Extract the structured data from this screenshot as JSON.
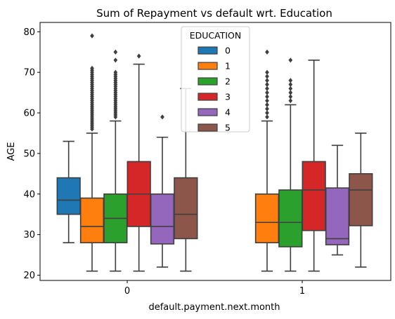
{
  "chart_data": {
    "type": "box",
    "title": "Sum of Repayment vs default wrt. Education",
    "xlabel": "default.payment.next.month",
    "ylabel": "AGE",
    "ylim": [
      18.7,
      82.3
    ],
    "yticks": [
      20,
      30,
      40,
      50,
      60,
      70,
      80
    ],
    "categories": [
      "0",
      "1"
    ],
    "grid": false,
    "legend": {
      "title": "EDUCATION",
      "placement": "upper-center"
    },
    "series": [
      {
        "name": "0",
        "color": "#1f77b4",
        "boxes": [
          {
            "category": "0",
            "q1": 35,
            "median": 38.5,
            "q3": 44,
            "whislo": 28,
            "whishi": 53,
            "outliers": []
          },
          null
        ]
      },
      {
        "name": "1",
        "color": "#ff7f0e",
        "boxes": [
          {
            "category": "0",
            "q1": 28,
            "median": 32,
            "q3": 39,
            "whislo": 21,
            "whishi": 55,
            "outliers": [
              56,
              56.5,
              57,
              57.5,
              58,
              58.5,
              59,
              59.5,
              60,
              60.5,
              61,
              61.5,
              62,
              62.5,
              63,
              63.5,
              64,
              64.5,
              65,
              65.5,
              66,
              66.5,
              67,
              67.5,
              68,
              68.5,
              69,
              69.5,
              70,
              70.5,
              71,
              79
            ]
          },
          {
            "category": "1",
            "q1": 28,
            "median": 33,
            "q3": 40,
            "whislo": 21,
            "whishi": 58,
            "outliers": [
              59,
              60,
              61,
              62,
              63,
              64,
              65,
              66,
              67,
              68,
              69,
              70,
              75
            ]
          }
        ]
      },
      {
        "name": "2",
        "color": "#2ca02c",
        "boxes": [
          {
            "category": "0",
            "q1": 28,
            "median": 34,
            "q3": 40,
            "whislo": 21,
            "whishi": 58,
            "outliers": [
              59,
              59.5,
              60,
              60.5,
              61,
              61.5,
              62,
              62.5,
              63,
              63.5,
              64,
              64.5,
              65,
              65.5,
              66,
              66.5,
              67,
              67.5,
              68,
              68.5,
              69,
              69.5,
              70,
              73,
              75
            ]
          },
          {
            "category": "1",
            "q1": 27,
            "median": 33,
            "q3": 41,
            "whislo": 21,
            "whishi": 62,
            "outliers": [
              63,
              64,
              65,
              66,
              67,
              68,
              73
            ]
          }
        ]
      },
      {
        "name": "3",
        "color": "#d62728",
        "boxes": [
          {
            "category": "0",
            "q1": 32,
            "median": 40,
            "q3": 48,
            "whislo": 21,
            "whishi": 72,
            "outliers": [
              74
            ]
          },
          {
            "category": "1",
            "q1": 31,
            "median": 41,
            "q3": 48,
            "whislo": 21,
            "whishi": 73,
            "outliers": []
          }
        ]
      },
      {
        "name": "4",
        "color": "#9467bd",
        "boxes": [
          {
            "category": "0",
            "q1": 27.7,
            "median": 32,
            "q3": 40,
            "whislo": 22,
            "whishi": 54,
            "outliers": [
              59
            ]
          },
          {
            "category": "1",
            "q1": 27.5,
            "median": 29,
            "q3": 41.5,
            "whislo": 25,
            "whishi": 52,
            "outliers": []
          }
        ]
      },
      {
        "name": "5",
        "color": "#8c564b",
        "boxes": [
          {
            "category": "0",
            "q1": 29,
            "median": 35,
            "q3": 44,
            "whislo": 21,
            "whishi": 66,
            "outliers": []
          },
          {
            "category": "1",
            "q1": 32.2,
            "median": 41,
            "q3": 45,
            "whislo": 22,
            "whishi": 55,
            "outliers": []
          }
        ]
      }
    ]
  }
}
